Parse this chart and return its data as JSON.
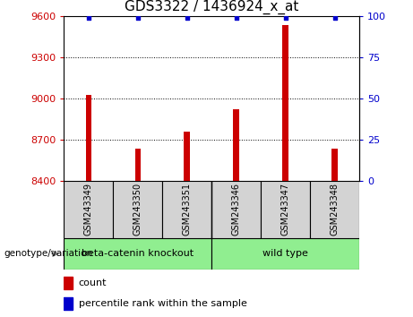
{
  "title": "GDS3322 / 1436924_x_at",
  "samples": [
    "GSM243349",
    "GSM243350",
    "GSM243351",
    "GSM243346",
    "GSM243347",
    "GSM243348"
  ],
  "counts": [
    9025,
    8630,
    8760,
    8920,
    9530,
    8630
  ],
  "percentiles": [
    99,
    99,
    99,
    99,
    99,
    99
  ],
  "ylim_left": [
    8400,
    9600
  ],
  "ylim_right": [
    0,
    100
  ],
  "yticks_left": [
    8400,
    8700,
    9000,
    9300,
    9600
  ],
  "yticks_right": [
    0,
    25,
    50,
    75,
    100
  ],
  "bar_color": "#cc0000",
  "dot_color": "#0000cc",
  "grid_color": "#000000",
  "plot_bg": "#ffffff",
  "label_box_color": "#d3d3d3",
  "group_color": "#90ee90",
  "group_labels": [
    "beta-catenin knockout",
    "wild type"
  ],
  "group_row_label": "genotype/variation",
  "legend_count_label": "count",
  "legend_percentile_label": "percentile rank within the sample",
  "left_tick_color": "#cc0000",
  "right_tick_color": "#0000cc",
  "tick_label_fontsize": 8,
  "title_fontsize": 11,
  "bar_width": 0.12
}
